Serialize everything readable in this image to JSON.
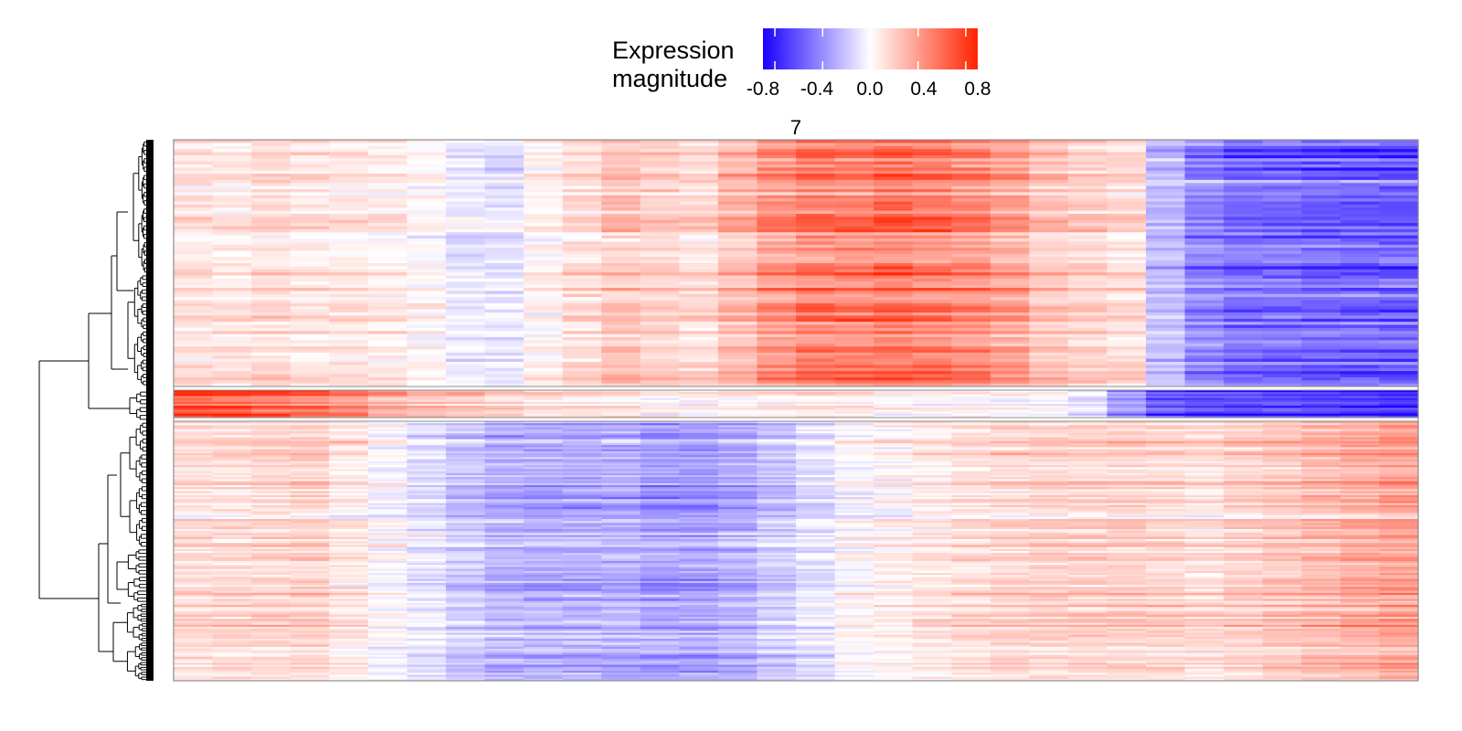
{
  "legend": {
    "title_line1": "Expression",
    "title_line2": "magnitude",
    "ticks": [
      "-0.8",
      "-0.4",
      "0.0",
      "0.4",
      "0.8"
    ],
    "tick_values": [
      -0.8,
      -0.4,
      0.0,
      0.4,
      0.8
    ],
    "range": [
      -0.9,
      0.9
    ],
    "colors": {
      "low": "#1a00ff",
      "mid": "#ffffff",
      "high": "#ff2200"
    }
  },
  "chart_data": {
    "type": "heatmap",
    "facet_label": "7",
    "legend_placement": "top",
    "dendrogram": "rows, left side",
    "value_range": [
      -0.9,
      0.9
    ],
    "row_blocks": [
      {
        "name": "upper block",
        "rows": 80,
        "profile": [
          0.12,
          0.1,
          0.15,
          0.12,
          0.1,
          0.08,
          0.02,
          -0.08,
          -0.1,
          0.05,
          0.15,
          0.25,
          0.2,
          0.15,
          0.3,
          0.45,
          0.55,
          0.55,
          0.6,
          0.55,
          0.5,
          0.4,
          0.25,
          0.2,
          0.15,
          -0.25,
          -0.45,
          -0.55,
          -0.55,
          -0.58,
          -0.6,
          -0.6
        ]
      },
      {
        "name": "middle band",
        "rows": 14,
        "profile": [
          0.8,
          0.78,
          0.72,
          0.65,
          0.55,
          0.4,
          0.3,
          0.25,
          0.2,
          0.15,
          0.15,
          0.1,
          0.05,
          0.05,
          0.05,
          0.08,
          0.1,
          0.08,
          0.05,
          0.05,
          0.02,
          0.0,
          0.0,
          -0.1,
          -0.45,
          -0.7,
          -0.75,
          -0.78,
          -0.8,
          -0.82,
          -0.85,
          -0.88
        ]
      },
      {
        "name": "lower block",
        "rows": 130,
        "profile": [
          0.15,
          0.15,
          0.18,
          0.2,
          0.1,
          0.0,
          -0.1,
          -0.2,
          -0.28,
          -0.3,
          -0.3,
          -0.3,
          -0.35,
          -0.35,
          -0.3,
          -0.2,
          -0.1,
          0.0,
          0.05,
          0.1,
          0.15,
          0.18,
          0.2,
          0.2,
          0.2,
          0.18,
          0.15,
          0.2,
          0.25,
          0.3,
          0.35,
          0.4
        ]
      }
    ]
  }
}
